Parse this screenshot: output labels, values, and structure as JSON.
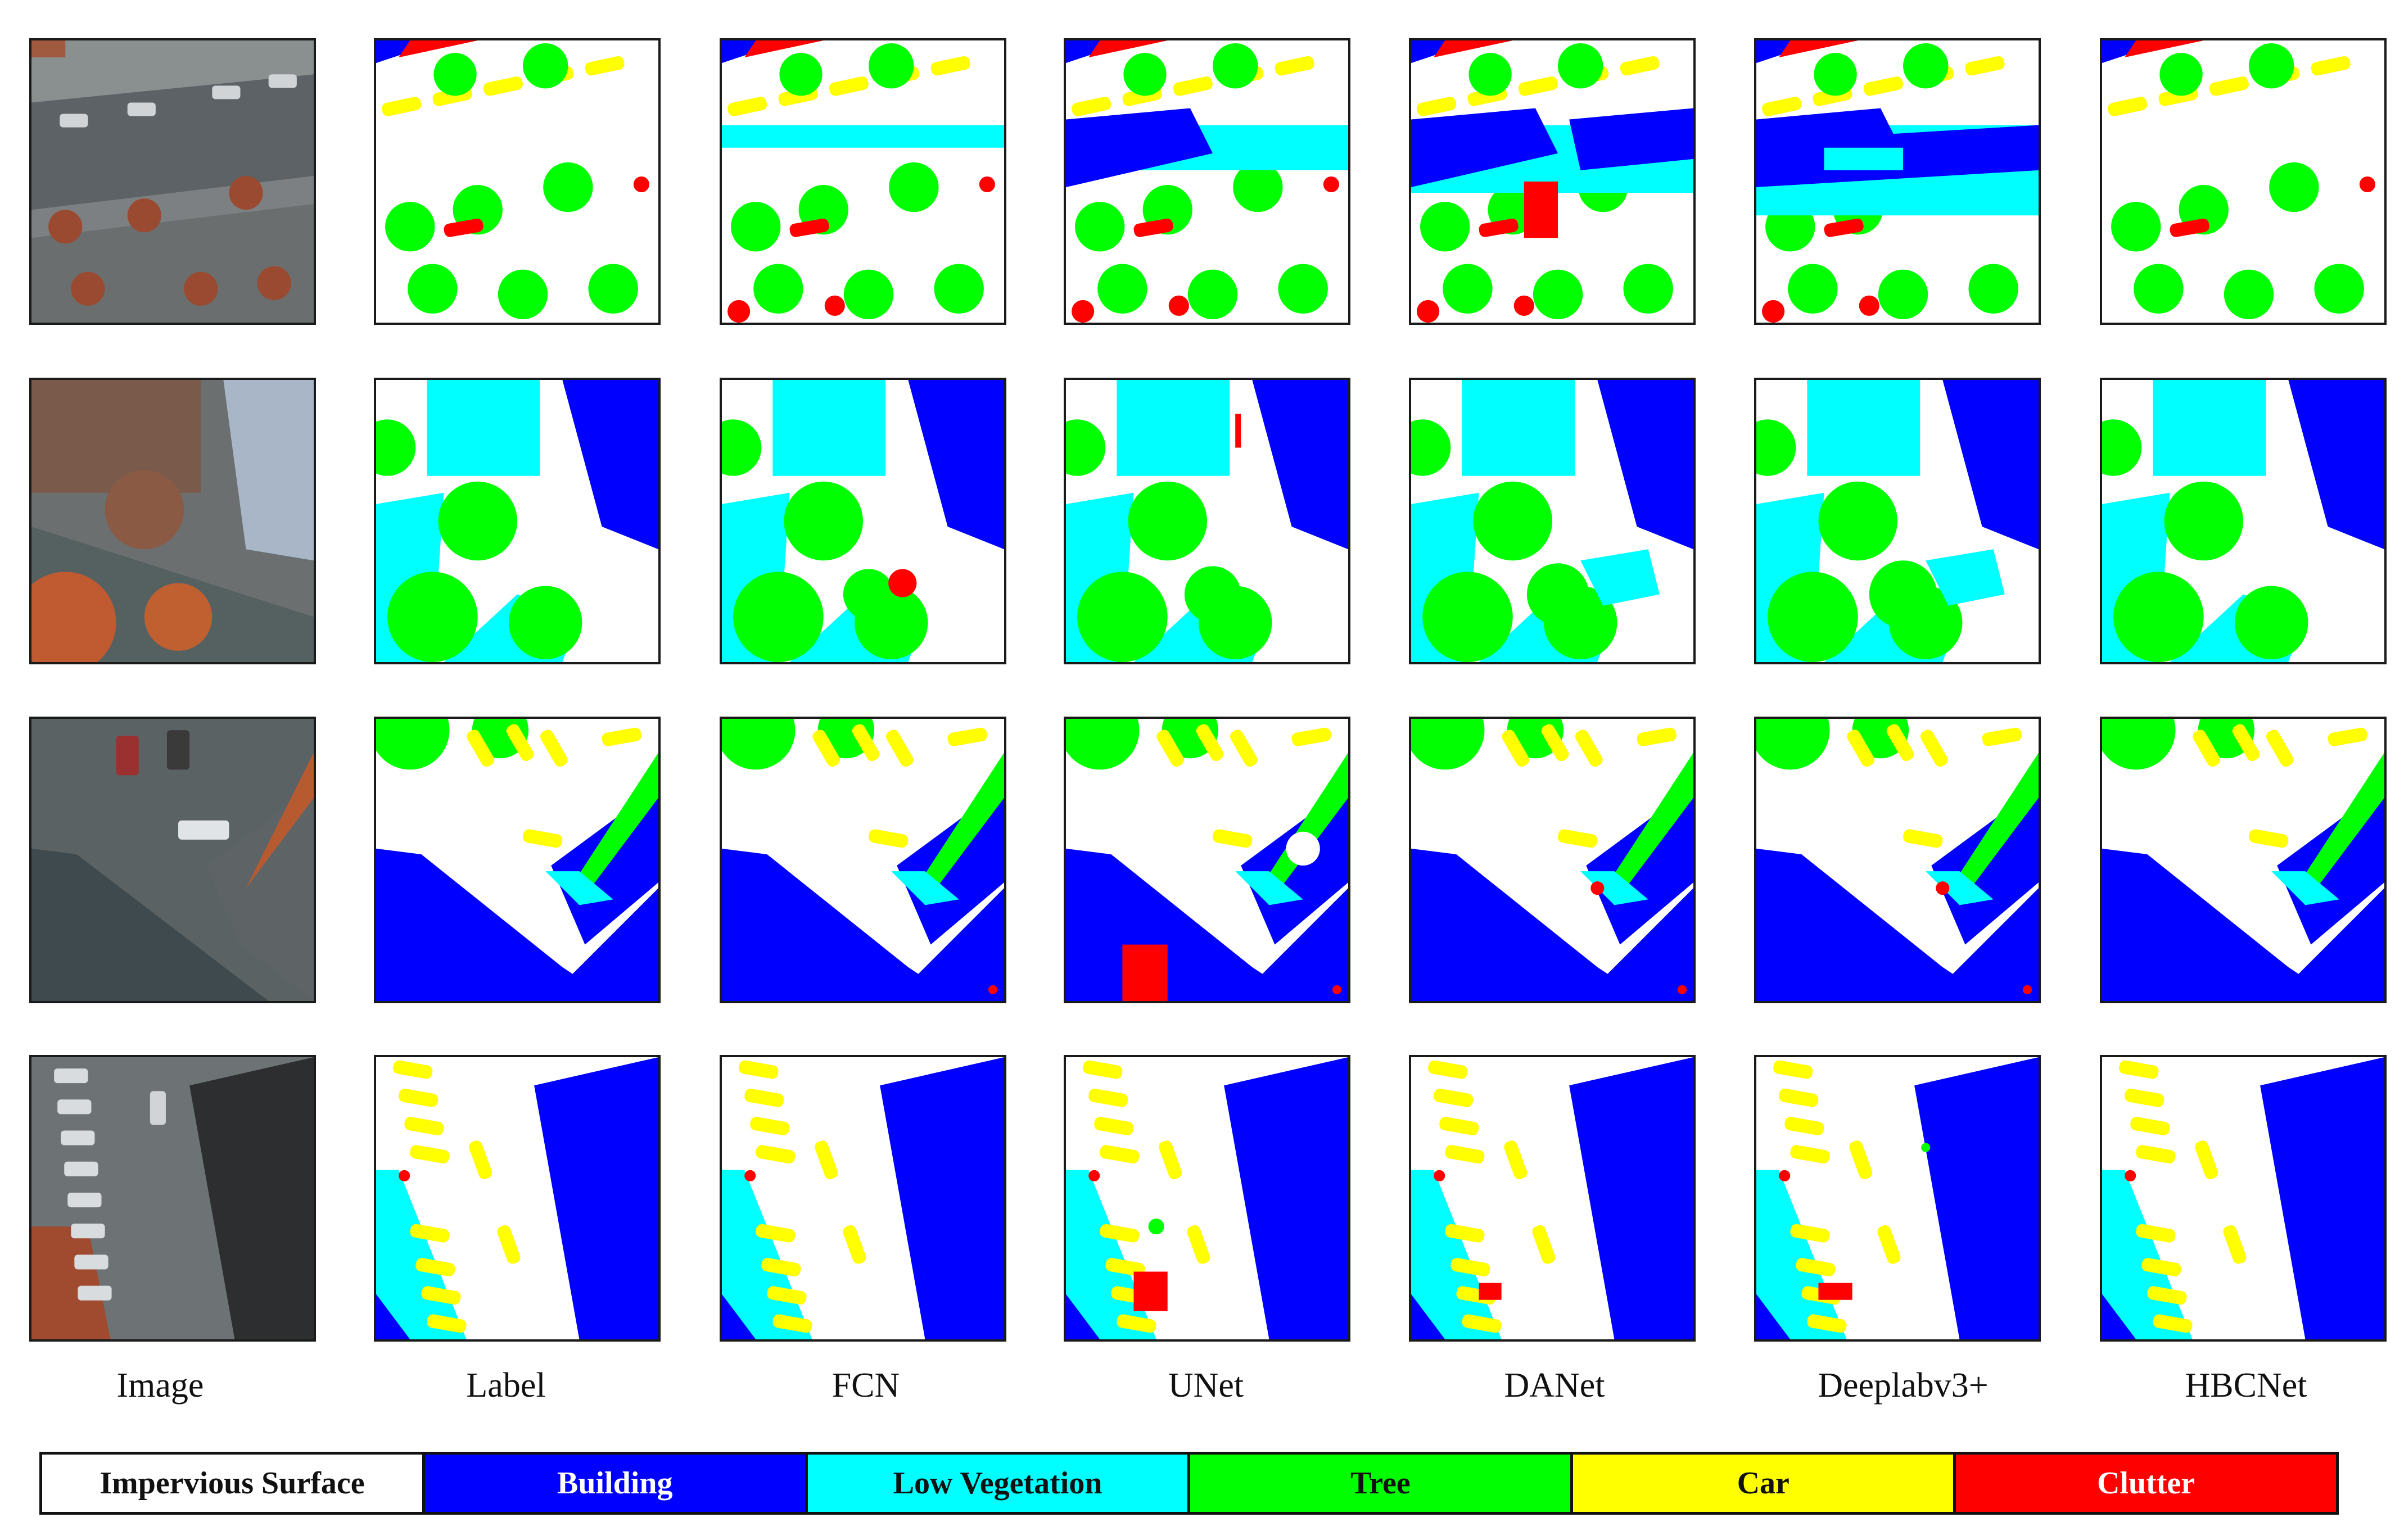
{
  "figure": {
    "columns": [
      "Image",
      "Label",
      "FCN",
      "UNet",
      "DANet",
      "Deeplabv3+",
      "HBCNet"
    ],
    "legend": [
      {
        "label": "Impervious Surface",
        "bg": "#ffffff",
        "fg": "#111111"
      },
      {
        "label": "Building",
        "bg": "#0000ff",
        "fg": "#ffffff"
      },
      {
        "label": "Low Vegetation",
        "bg": "#00ffff",
        "fg": "#111111"
      },
      {
        "label": "Tree",
        "bg": "#00ff00",
        "fg": "#111111"
      },
      {
        "label": "Car",
        "bg": "#ffff00",
        "fg": "#111111"
      },
      {
        "label": "Clutter",
        "bg": "#ff0000",
        "fg": "#ffffff"
      }
    ],
    "colors": {
      "impervious": "#ffffff",
      "building": "#0000ff",
      "low_vegetation": "#00ffff",
      "tree": "#00ff00",
      "car": "#ffff00",
      "clutter": "#ff0000"
    },
    "rows": 4
  }
}
